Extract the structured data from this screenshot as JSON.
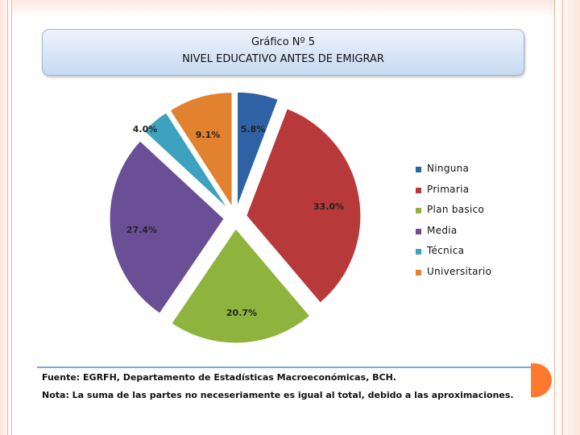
{
  "header": {
    "title_line1": "Gráfico Nº 5",
    "title_line2": "NIVEL EDUCATIVO ANTES DE EMIGRAR"
  },
  "chart_data": {
    "type": "pie",
    "title": "NIVEL EDUCATIVO ANTES DE EMIGRAR",
    "exploded": true,
    "legend_position": "right",
    "series": [
      {
        "name": "Ninguna",
        "value": 5.8,
        "label": "5.8%",
        "color": "#2e62a5"
      },
      {
        "name": "Primaria",
        "value": 33.0,
        "label": "33.0%",
        "color": "#b8393a"
      },
      {
        "name": "Plan basico",
        "value": 20.7,
        "label": "20.7%",
        "color": "#8fb43e"
      },
      {
        "name": "Media",
        "value": 27.4,
        "label": "27.4%",
        "color": "#6a4f97"
      },
      {
        "name": "Técnica",
        "value": 4.0,
        "label": "4.0%",
        "color": "#3ea1bf"
      },
      {
        "name": "Universitario",
        "value": 9.1,
        "label": "9.1%",
        "color": "#e2812e"
      }
    ]
  },
  "footer": {
    "source": "Fuente: EGRFH, Departamento de Estadísticas Macroeconómicas, BCH.",
    "note": "Nota: La suma de las partes no neceseriamente es igual al total, debido a las aproximaciones."
  },
  "colors": {
    "frame_accent": "#f2b39a",
    "footer_rule": "#7aa7d6",
    "footer_dot": "#ff7a2e"
  }
}
